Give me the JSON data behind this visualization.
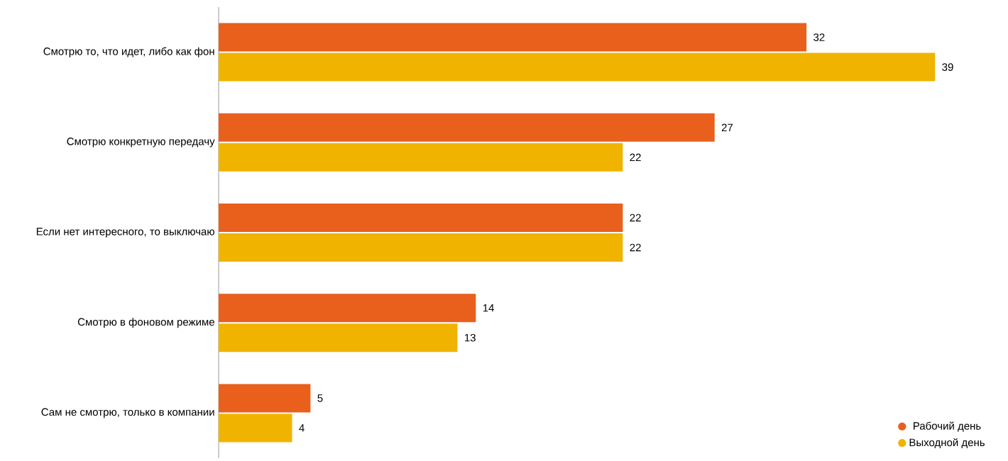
{
  "chart_data": {
    "type": "bar",
    "orientation": "horizontal",
    "categories": [
      "Смотрю то, что идет, либо как фон",
      "Смотрю конкретную передачу",
      "Если нет интересного, то выключаю",
      "Смотрю в фоновом режиме",
      "Сам не смотрю, только в компании"
    ],
    "series": [
      {
        "name": "Рабочий день",
        "color": "#e8601c",
        "values": [
          32,
          27,
          22,
          14,
          5
        ]
      },
      {
        "name": "Выходной день",
        "color": "#f0b400",
        "values": [
          39,
          22,
          22,
          13,
          4
        ]
      }
    ],
    "data_labels": true,
    "legend": "bottom right"
  }
}
